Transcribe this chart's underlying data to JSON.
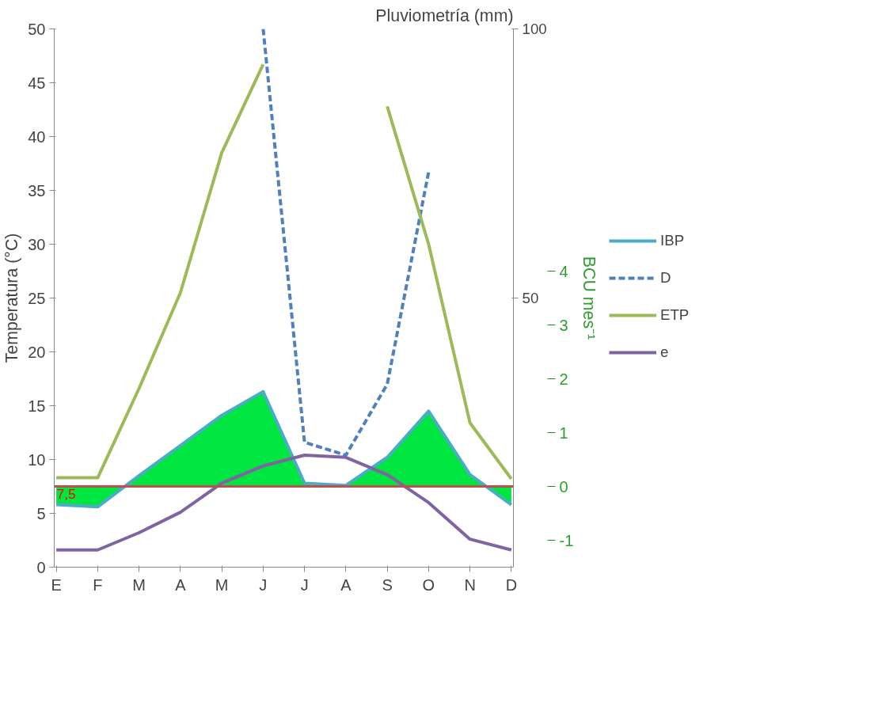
{
  "chart_data": {
    "type": "line",
    "categories": [
      "E",
      "F",
      "M",
      "A",
      "M",
      "J",
      "J",
      "A",
      "S",
      "O",
      "N",
      "D"
    ],
    "ylabel": "Temperatura (°C)",
    "y2label": "Pluviometría (mm)",
    "y3label": "BCU mes⁻¹",
    "ylim": [
      0,
      50
    ],
    "yticks": [
      0,
      5,
      10,
      15,
      20,
      25,
      30,
      35,
      40,
      45,
      50
    ],
    "y2lim": [
      0,
      100
    ],
    "y2ticks": [
      50,
      100
    ],
    "y3lim": [
      -1.5,
      8.5
    ],
    "y3ticks": [
      -1,
      0,
      1,
      2,
      3,
      4
    ],
    "series": [
      {
        "name": "IBP",
        "type": "area",
        "axis": "y3",
        "color": "#4bacc6",
        "colors": [
          "#00e5e5",
          "#00e5e5",
          "#00e640",
          "#00e640",
          "#00e640",
          "#00e640",
          "#00e640",
          "#00e640",
          "#00e640",
          "#00e640",
          "#00e640",
          "#00e5e5"
        ],
        "values": [
          -0.34,
          -0.38,
          0.2,
          0.76,
          1.32,
          1.76,
          0.06,
          0.02,
          0.54,
          1.4,
          0.22,
          -0.34
        ]
      },
      {
        "name": "D",
        "type": "line",
        "axis": "y2",
        "color": "#4f81bd",
        "line_style": "dashed",
        "values": [
          null,
          null,
          null,
          null,
          null,
          100,
          23.2,
          20.8,
          34,
          73.4,
          null,
          null
        ]
      },
      {
        "name": "ETP",
        "type": "line",
        "axis": "y2",
        "color": "#9bbb59",
        "values": [
          16.6,
          16.6,
          33.2,
          51,
          77,
          93.4,
          null,
          null,
          85.6,
          60,
          26.8,
          16.4
        ]
      },
      {
        "name": "e",
        "type": "line",
        "color": "#8064a2",
        "values": [
          1.6,
          1.6,
          3.2,
          5.1,
          7.8,
          9.4,
          10.4,
          10.2,
          8.6,
          6.0,
          2.6,
          1.6
        ]
      }
    ],
    "ref_lines": [
      {
        "axis": "y",
        "value": 7.5,
        "label": "7,5",
        "color": "#c0504d"
      }
    ],
    "grid": false,
    "legend": "right",
    "marker": "none"
  }
}
